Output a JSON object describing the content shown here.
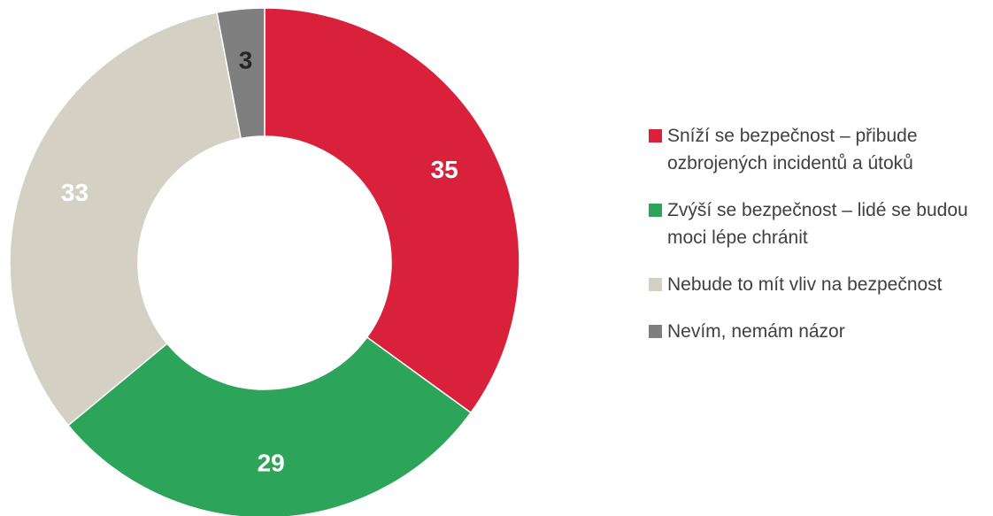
{
  "chart_data": {
    "type": "donut",
    "categories": [
      "Sníží se bezpečnost – přibude ozbrojených incidentů a útoků",
      "Zvýší se bezpečnost – lidé se budou moci lépe chránit",
      "Nebude to mít vliv na bezpečnost",
      "Nevím, nemám názor"
    ],
    "values": [
      35,
      29,
      33,
      3
    ],
    "colors": [
      "#d9213b",
      "#2ca55a",
      "#d5d0c4",
      "#7f7f7f"
    ],
    "legend": "right"
  }
}
